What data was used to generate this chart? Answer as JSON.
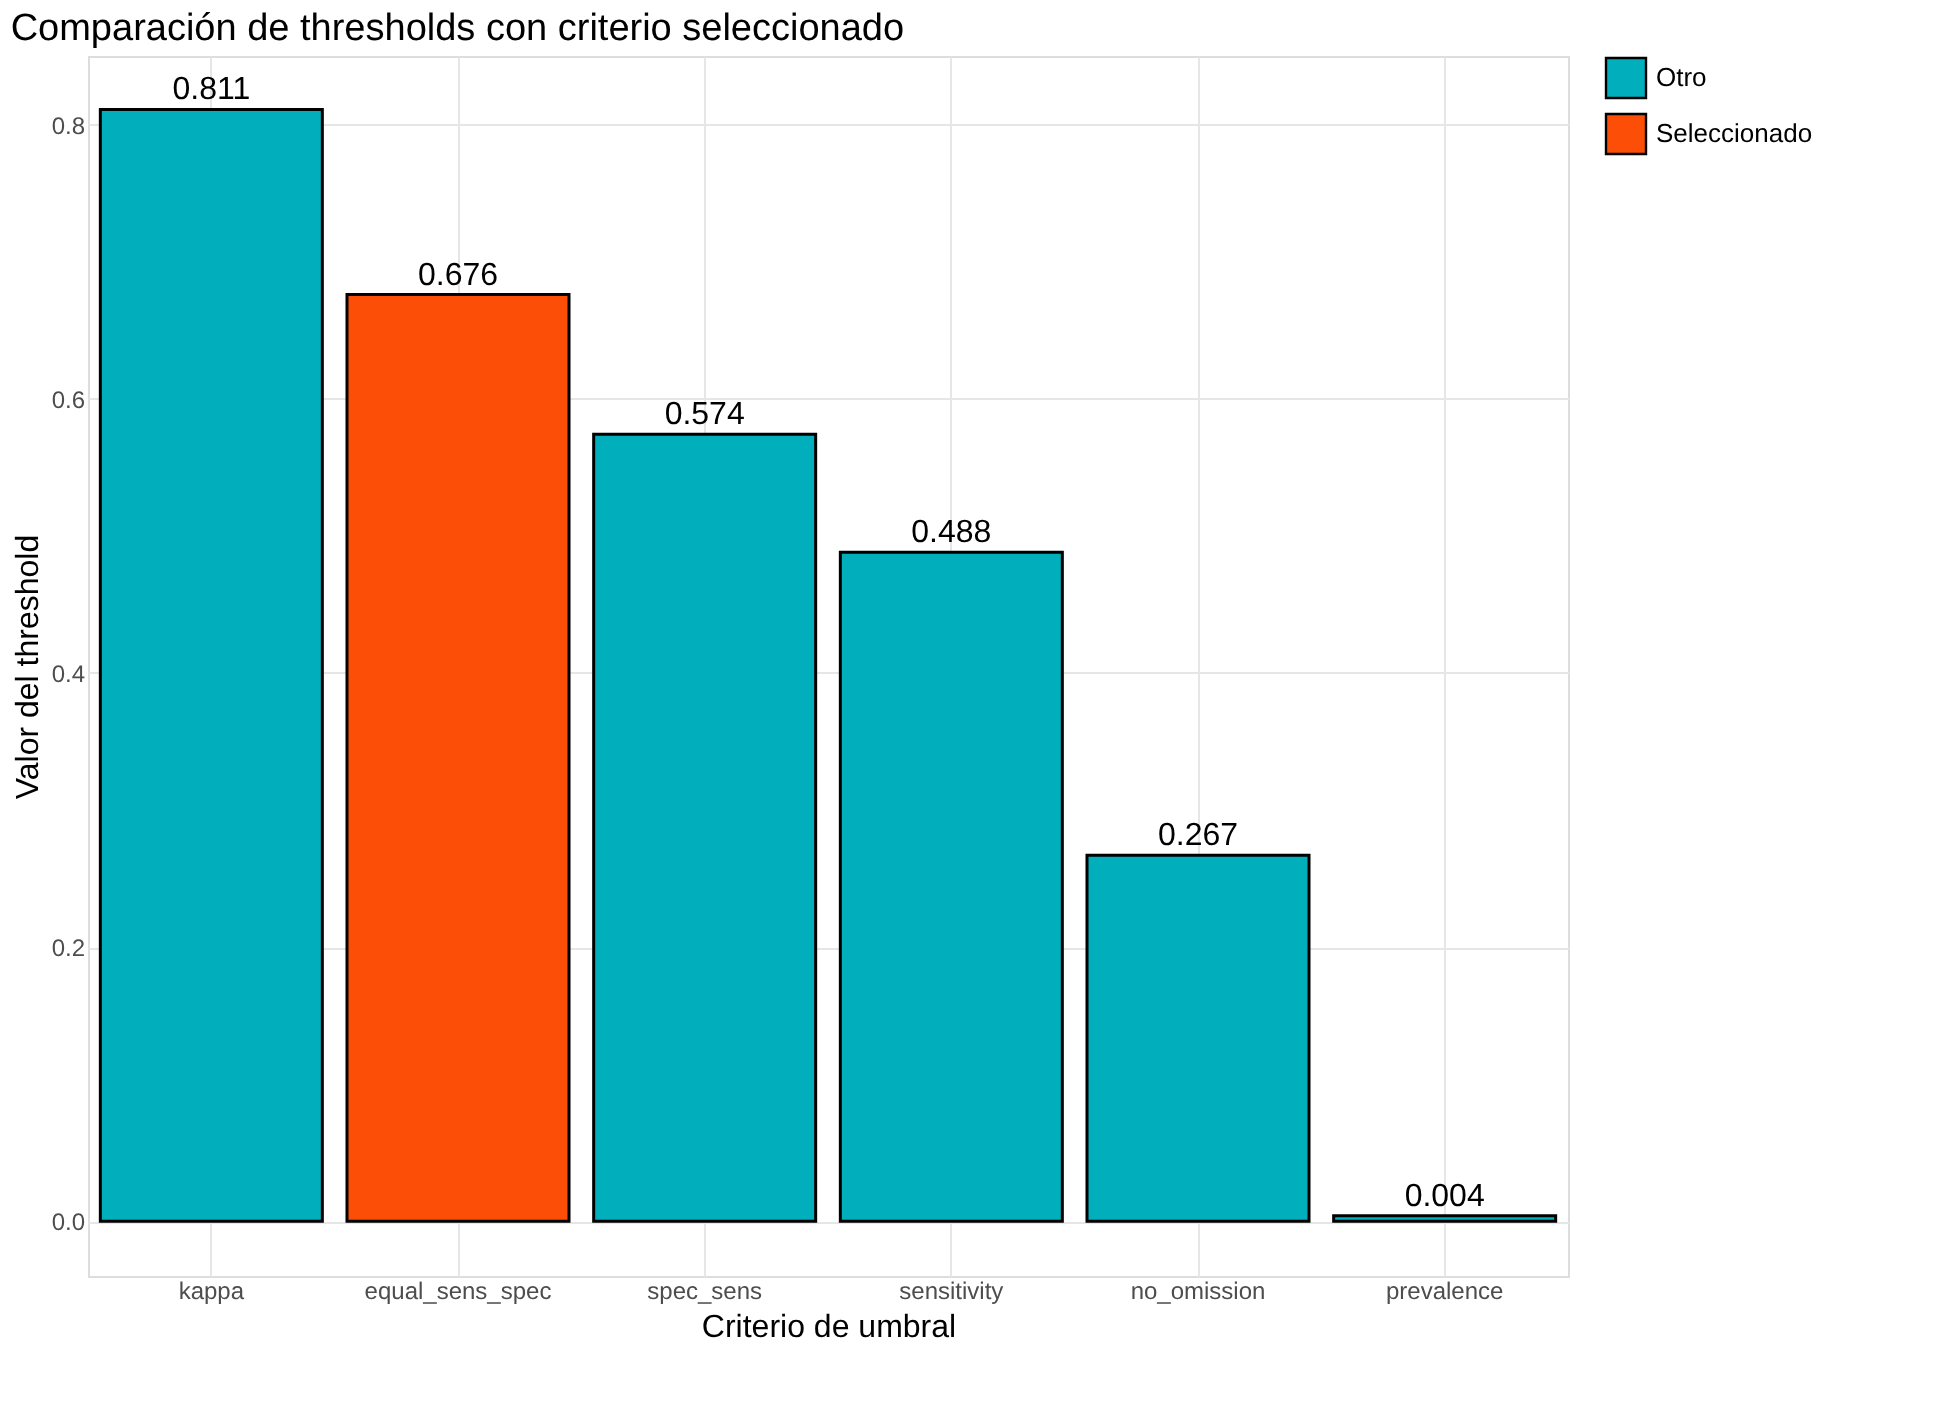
{
  "chart_data": {
    "type": "bar",
    "title": "Comparación de thresholds con criterio seleccionado",
    "xlabel": "Criterio de umbral",
    "ylabel": "Valor del threshold",
    "categories": [
      "kappa",
      "equal_sens_spec",
      "spec_sens",
      "sensitivity",
      "no_omission",
      "prevalence"
    ],
    "series": [
      {
        "name": "Otro",
        "color": "#00afbb",
        "values": [
          0.811,
          null,
          0.574,
          0.488,
          0.267,
          0.004
        ]
      },
      {
        "name": "Seleccionado",
        "color": "#fc4e07",
        "values": [
          null,
          0.676,
          null,
          null,
          null,
          null
        ]
      }
    ],
    "ylim": [
      -0.04,
      0.85
    ],
    "yticks": [
      {
        "value": 0,
        "label": "0.0"
      },
      0.2,
      0.4,
      0.6,
      0.8
    ],
    "grid": true,
    "legend": "right",
    "data_labels": true
  }
}
